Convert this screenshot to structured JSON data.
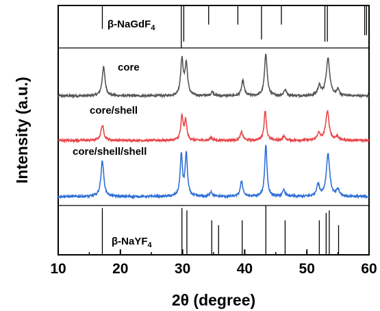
{
  "chart_data": {
    "type": "line",
    "xlabel": "2θ (degree)",
    "ylabel": "Intensity (a.u.)",
    "xlim": [
      10,
      60
    ],
    "xticks": [
      "10",
      "20",
      "30",
      "40",
      "50",
      "60"
    ],
    "grid": false,
    "reference_top": {
      "label_main": "β-NaGdF",
      "label_sub": "4",
      "positions": [
        17.1,
        29.8,
        30.2,
        34.2,
        38.9,
        42.7,
        45.9,
        52.9,
        53.3,
        59.3,
        59.6
      ],
      "heights": [
        0.55,
        1.0,
        0.85,
        0.45,
        0.45,
        0.8,
        0.45,
        0.85,
        0.85,
        0.7,
        0.7
      ]
    },
    "reference_bottom": {
      "label_main": "β-NaYF",
      "label_sub": "4",
      "positions": [
        17.1,
        29.9,
        30.7,
        34.7,
        35.8,
        39.6,
        43.4,
        46.5,
        52.0,
        53.1,
        53.6,
        55.1
      ],
      "heights": [
        0.95,
        0.95,
        0.9,
        0.7,
        0.6,
        0.7,
        1.0,
        0.7,
        0.7,
        0.85,
        0.9,
        0.6
      ]
    },
    "series": [
      {
        "name": "core",
        "color": "#555555",
        "baseline": 0,
        "peaks": [
          {
            "x": 17.3,
            "h": 42,
            "w": 0.28
          },
          {
            "x": 29.9,
            "h": 52,
            "w": 0.25
          },
          {
            "x": 30.6,
            "h": 46,
            "w": 0.25
          },
          {
            "x": 34.8,
            "h": 6,
            "w": 0.25
          },
          {
            "x": 39.7,
            "h": 22,
            "w": 0.25
          },
          {
            "x": 43.4,
            "h": 62,
            "w": 0.25
          },
          {
            "x": 46.5,
            "h": 9,
            "w": 0.25
          },
          {
            "x": 52.0,
            "h": 14,
            "w": 0.3
          },
          {
            "x": 53.4,
            "h": 54,
            "w": 0.35
          },
          {
            "x": 55.0,
            "h": 8,
            "w": 0.25
          }
        ]
      },
      {
        "name": "core/shell",
        "color": "#e8474a",
        "baseline": 0,
        "peaks": [
          {
            "x": 17.1,
            "h": 22,
            "w": 0.28
          },
          {
            "x": 29.9,
            "h": 34,
            "w": 0.22
          },
          {
            "x": 30.5,
            "h": 28,
            "w": 0.22
          },
          {
            "x": 34.6,
            "h": 4,
            "w": 0.25
          },
          {
            "x": 39.5,
            "h": 12,
            "w": 0.25
          },
          {
            "x": 43.3,
            "h": 44,
            "w": 0.22
          },
          {
            "x": 46.3,
            "h": 6,
            "w": 0.25
          },
          {
            "x": 51.9,
            "h": 10,
            "w": 0.3
          },
          {
            "x": 53.3,
            "h": 42,
            "w": 0.33
          },
          {
            "x": 54.9,
            "h": 6,
            "w": 0.25
          }
        ]
      },
      {
        "name": "core/shell/shell",
        "color": "#2f6fd6",
        "baseline": 0,
        "peaks": [
          {
            "x": 17.1,
            "h": 52,
            "w": 0.28
          },
          {
            "x": 29.8,
            "h": 60,
            "w": 0.22
          },
          {
            "x": 30.6,
            "h": 62,
            "w": 0.22
          },
          {
            "x": 34.6,
            "h": 7,
            "w": 0.25
          },
          {
            "x": 39.5,
            "h": 22,
            "w": 0.25
          },
          {
            "x": 43.4,
            "h": 76,
            "w": 0.22
          },
          {
            "x": 46.3,
            "h": 9,
            "w": 0.25
          },
          {
            "x": 51.8,
            "h": 17,
            "w": 0.3
          },
          {
            "x": 53.4,
            "h": 62,
            "w": 0.33
          },
          {
            "x": 55.0,
            "h": 10,
            "w": 0.25
          }
        ]
      }
    ]
  }
}
